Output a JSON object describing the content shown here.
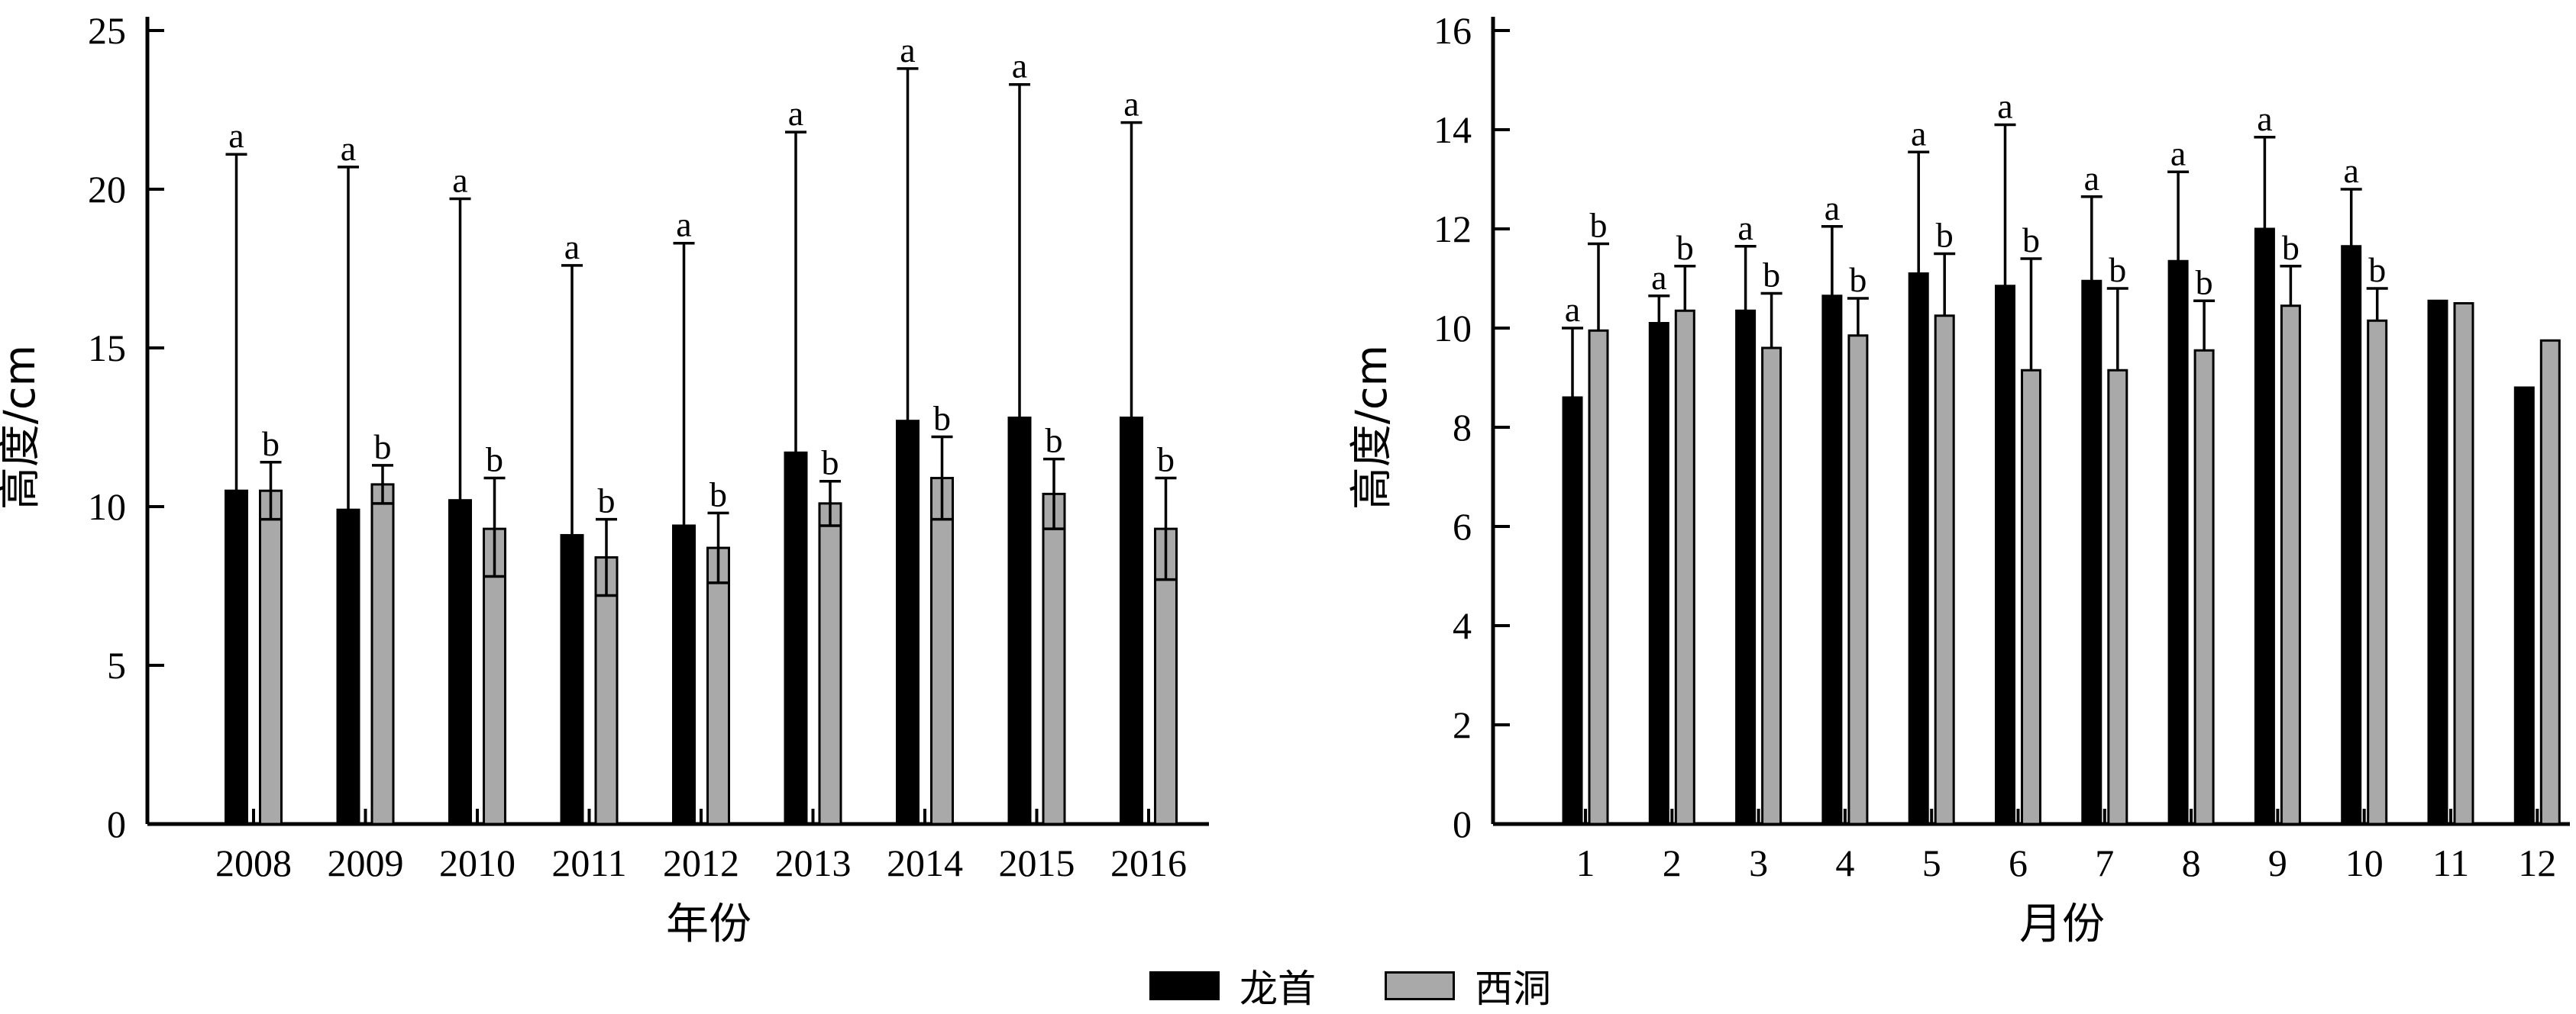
{
  "colors": {
    "series_1": "#000000",
    "series_2": "#a9a9a9"
  },
  "legend": [
    {
      "name": "龙首",
      "color": "#000000"
    },
    {
      "name": "西洞",
      "color": "#a9a9a9"
    }
  ],
  "chart_data": [
    {
      "type": "bar",
      "xlabel": "年份",
      "ylabel": "高度/cm",
      "ylim": [
        0,
        25
      ],
      "yticks": [
        0,
        5,
        10,
        15,
        20,
        25
      ],
      "categories": [
        "2008",
        "2009",
        "2010",
        "2011",
        "2012",
        "2013",
        "2014",
        "2015",
        "2016"
      ],
      "series": [
        {
          "name": "龙首",
          "values": [
            10.5,
            9.9,
            10.2,
            9.1,
            9.4,
            11.7,
            12.7,
            12.8,
            12.8
          ],
          "error_upper": [
            21.1,
            20.7,
            19.7,
            17.6,
            18.3,
            21.8,
            23.8,
            23.3,
            22.1
          ],
          "labels": [
            "a",
            "a",
            "a",
            "a",
            "a",
            "a",
            "a",
            "a",
            "a"
          ]
        },
        {
          "name": "西洞",
          "values": [
            10.5,
            10.7,
            9.3,
            8.4,
            8.7,
            10.1,
            10.9,
            10.4,
            9.3
          ],
          "error_upper": [
            11.4,
            11.3,
            10.9,
            9.6,
            9.8,
            10.8,
            12.2,
            11.5,
            10.9
          ],
          "error_lower": [
            9.6,
            10.1,
            7.8,
            7.2,
            7.6,
            9.4,
            9.6,
            9.3,
            7.7
          ],
          "labels": [
            "b",
            "b",
            "b",
            "b",
            "b",
            "b",
            "b",
            "b",
            "b"
          ]
        }
      ]
    },
    {
      "type": "bar",
      "xlabel": "月份",
      "ylabel": "高度/cm",
      "ylim": [
        0,
        16
      ],
      "yticks": [
        0,
        2,
        4,
        6,
        8,
        10,
        12,
        14,
        16
      ],
      "categories": [
        "1",
        "2",
        "3",
        "4",
        "5",
        "6",
        "7",
        "8",
        "9",
        "10",
        "11",
        "12"
      ],
      "series": [
        {
          "name": "龙首",
          "values": [
            8.6,
            10.1,
            10.35,
            10.65,
            11.1,
            10.85,
            10.95,
            11.35,
            12.0,
            11.65,
            10.55,
            8.8
          ],
          "error_upper": [
            10.0,
            10.65,
            11.65,
            12.05,
            13.55,
            14.1,
            12.65,
            13.15,
            13.85,
            12.8,
            null,
            null
          ],
          "labels": [
            "a",
            "a",
            "a",
            "a",
            "a",
            "a",
            "a",
            "a",
            "a",
            "a",
            "",
            ""
          ]
        },
        {
          "name": "西洞",
          "values": [
            9.95,
            10.35,
            9.6,
            9.85,
            10.25,
            9.15,
            9.15,
            9.55,
            10.45,
            10.15,
            10.5,
            9.75
          ],
          "error_upper": [
            11.7,
            11.25,
            10.7,
            10.6,
            11.5,
            11.4,
            10.8,
            10.55,
            11.25,
            10.8,
            null,
            null
          ],
          "error_lower": [
            null,
            null,
            null,
            null,
            null,
            null,
            null,
            null,
            null,
            null,
            null,
            null
          ],
          "labels": [
            "b",
            "b",
            "b",
            "b",
            "b",
            "b",
            "b",
            "b",
            "b",
            "b",
            "",
            ""
          ]
        }
      ]
    }
  ]
}
